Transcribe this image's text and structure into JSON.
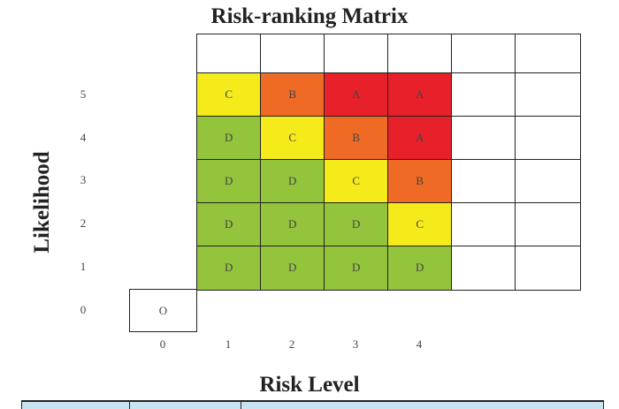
{
  "chart_data": {
    "type": "heatmap",
    "title": "Risk-ranking Matrix",
    "xlabel": "Risk Level",
    "ylabel": "Likelihood",
    "x_ticks": [
      "0",
      "1",
      "2",
      "3",
      "4"
    ],
    "y_ticks": [
      "5",
      "4",
      "3",
      "2",
      "1",
      "0"
    ],
    "grid_columns": 6,
    "grid_rows": 6,
    "rows": [
      {
        "likelihood": "top",
        "cells": [
          "",
          "",
          "",
          "",
          "",
          ""
        ]
      },
      {
        "likelihood": "5",
        "cells": [
          "C",
          "B",
          "A",
          "A",
          "",
          ""
        ]
      },
      {
        "likelihood": "4",
        "cells": [
          "D",
          "C",
          "B",
          "A",
          "",
          ""
        ]
      },
      {
        "likelihood": "3",
        "cells": [
          "D",
          "D",
          "C",
          "B",
          "",
          ""
        ]
      },
      {
        "likelihood": "2",
        "cells": [
          "D",
          "D",
          "D",
          "C",
          "",
          ""
        ]
      },
      {
        "likelihood": "1",
        "cells": [
          "D",
          "D",
          "D",
          "D",
          "",
          ""
        ]
      }
    ],
    "origin_cell": {
      "x": "0",
      "y": "0",
      "label": "O"
    },
    "colors": {
      "A": "#e8202a",
      "B": "#ef6a25",
      "C": "#f5eb1a",
      "D": "#93c43c",
      "empty": "#ffffff"
    }
  }
}
